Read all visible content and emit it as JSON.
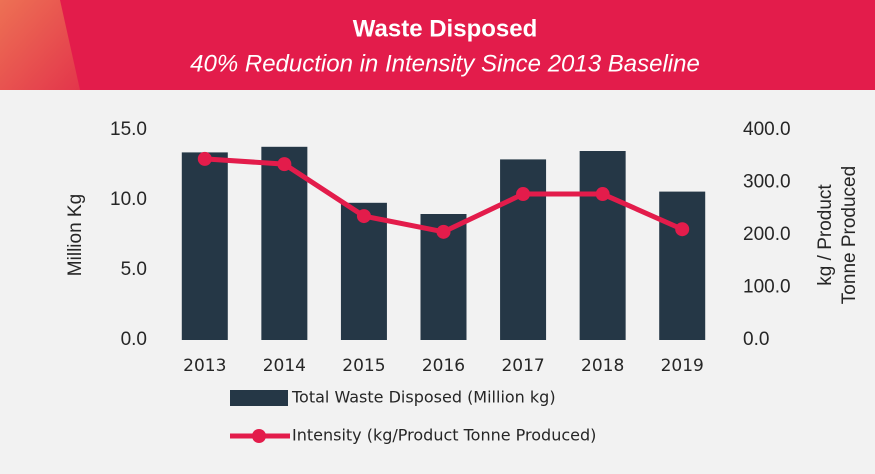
{
  "chart_data": {
    "type": "bar_line",
    "title": "Waste Disposed",
    "subtitle": "40% Reduction in Intensity Since 2013 Baseline",
    "y_label": "Million Kg",
    "y2_label": [
      "kg / Product",
      "Tonne Produced"
    ],
    "categories": [
      "2013",
      "2014",
      "2015",
      "2016",
      "2017",
      "2018",
      "2019"
    ],
    "series": [
      {
        "name": "Total Waste Disposed (Million kg)",
        "type": "bar",
        "color": "#253746",
        "values": [
          13.4,
          13.8,
          9.8,
          9.0,
          12.9,
          13.5,
          10.6
        ]
      },
      {
        "name": "Intensity (kg/Product Tonne Produced)",
        "type": "line",
        "axis": "y2",
        "color": "#e31c4b",
        "values": [
          345,
          335,
          236,
          206,
          278,
          278,
          211
        ]
      }
    ],
    "ylim": [
      0,
      15
    ],
    "yticks": [
      {
        "value": 0,
        "label": "0.0"
      },
      {
        "value": 5,
        "label": "5.0"
      },
      {
        "value": 10,
        "label": "10.0"
      },
      {
        "value": 15,
        "label": "15.0"
      }
    ],
    "y2lim": [
      0,
      400
    ],
    "y2ticks": [
      {
        "value": 0,
        "label": "0.0"
      },
      {
        "value": 100,
        "label": "100.0"
      },
      {
        "value": 200,
        "label": "200.0"
      },
      {
        "value": 300,
        "label": "300.0"
      },
      {
        "value": 400,
        "label": "400.0"
      }
    ]
  }
}
